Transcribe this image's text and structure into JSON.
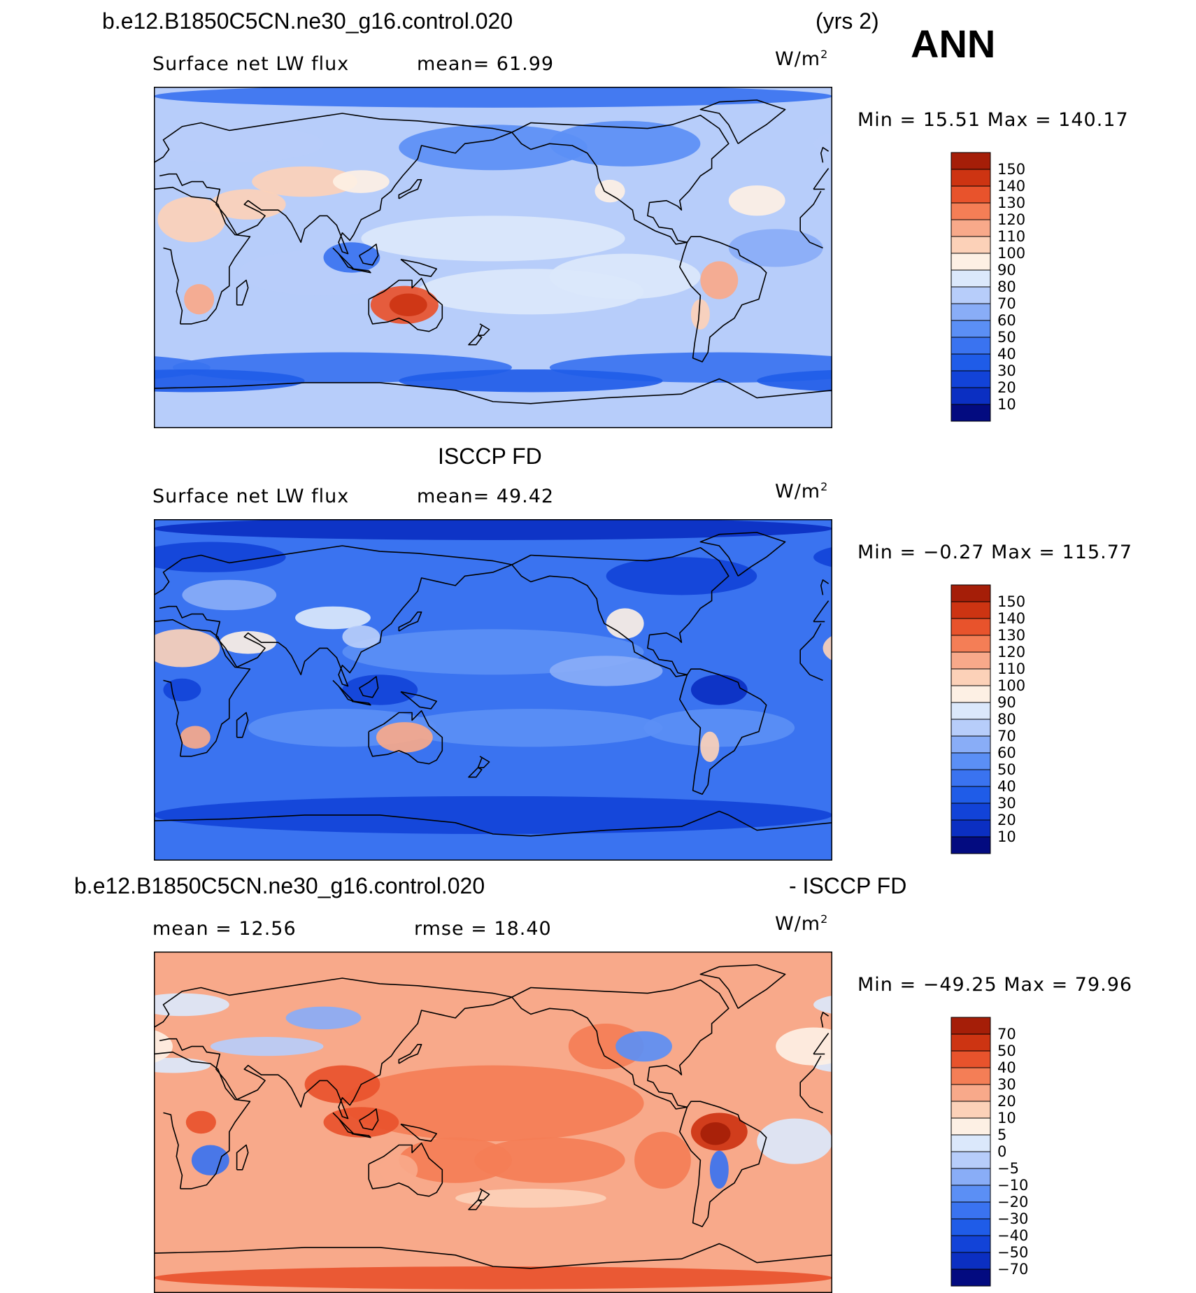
{
  "header": {
    "case_name": "b.e12.B1850C5CN.ne30_g16.control.020",
    "years": "(yrs 2)",
    "season": "ANN"
  },
  "panels": [
    {
      "id": "model",
      "title": "",
      "variable": "Surface net LW flux",
      "stat_text": "mean=   61.99",
      "units": "W/m",
      "units_exp": "2",
      "minmax": "Min =   15.51  Max = 140.17",
      "palette": "model",
      "colorbar_labels": [
        "150",
        "140",
        "130",
        "120",
        "110",
        "100",
        "90",
        "80",
        "70",
        "60",
        "50",
        "40",
        "30",
        "20",
        "10"
      ]
    },
    {
      "id": "obs",
      "title": "ISCCP FD",
      "variable": "Surface net LW flux",
      "stat_text": "mean=   49.42",
      "units": "W/m",
      "units_exp": "2",
      "minmax": "Min =   −0.27  Max = 115.77",
      "palette": "obs",
      "colorbar_labels": [
        "150",
        "140",
        "130",
        "120",
        "110",
        "100",
        "90",
        "80",
        "70",
        "60",
        "50",
        "40",
        "30",
        "20",
        "10"
      ]
    },
    {
      "id": "diff",
      "title_left": "b.e12.B1850C5CN.ne30_g16.control.020",
      "title_right": "- ISCCP FD",
      "mean_text": "mean =   12.56",
      "rmse_text": "rmse =   18.40",
      "units": "W/m",
      "units_exp": "2",
      "minmax": "Min = −49.25  Max =   79.96",
      "palette": "diff",
      "colorbar_labels": [
        "70",
        "50",
        "40",
        "30",
        "20",
        "10",
        "5",
        "0",
        "−5",
        "−10",
        "−20",
        "−30",
        "−40",
        "−50",
        "−70"
      ]
    }
  ],
  "colors": {
    "abs_scale": [
      "#030b80",
      "#0b2fc2",
      "#1243d8",
      "#1f5ce8",
      "#3a73f0",
      "#5b8ff5",
      "#89adf7",
      "#b7cdfa",
      "#dbe8fb",
      "#fdf0e4",
      "#fcd1b8",
      "#f8a98a",
      "#f47e56",
      "#e8532c",
      "#cd3412",
      "#a51e08"
    ],
    "diff_scale": [
      "#030b80",
      "#0b2fc2",
      "#1243d8",
      "#1f5ce8",
      "#3a73f0",
      "#5b8ff5",
      "#89adf7",
      "#b7cdfa",
      "#dbe8fb",
      "#fdf0e4",
      "#fcd1b8",
      "#f8a98a",
      "#f47e56",
      "#e8532c",
      "#cd3412",
      "#a51e08"
    ]
  }
}
